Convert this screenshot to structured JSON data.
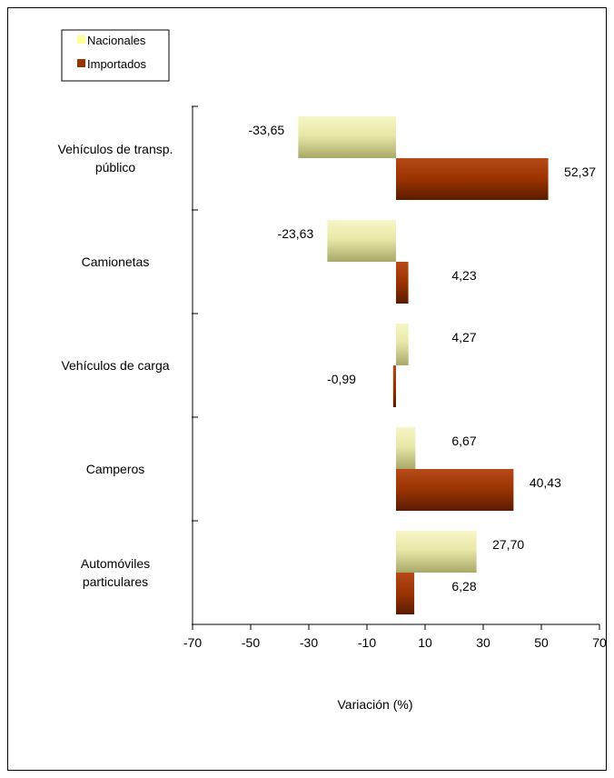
{
  "chart_data": {
    "type": "bar",
    "orientation": "horizontal",
    "categories": [
      [
        "Vehículos de transp.",
        "público"
      ],
      [
        "Camionetas"
      ],
      [
        "Vehículos de carga"
      ],
      [
        "Camperos"
      ],
      [
        "Automóviles",
        "particulares"
      ]
    ],
    "series": [
      {
        "name": "Nacionales",
        "color": "#ffff99",
        "values": [
          -33.65,
          -23.63,
          4.27,
          6.67,
          27.7
        ],
        "labels": [
          "-33,65",
          "-23,63",
          "4,27",
          "6,67",
          "27,70"
        ]
      },
      {
        "name": "Importados",
        "color": "#993300",
        "values": [
          52.37,
          4.23,
          -0.99,
          40.43,
          6.28
        ],
        "labels": [
          "52,37",
          "4,23",
          "-0,99",
          "40,43",
          "6,28"
        ]
      }
    ],
    "xlabel": "Variación (%)",
    "xlim": [
      -70,
      70
    ],
    "xticks": [
      -70,
      -50,
      -30,
      -10,
      10,
      30,
      50,
      70
    ],
    "legend": "top-left"
  }
}
